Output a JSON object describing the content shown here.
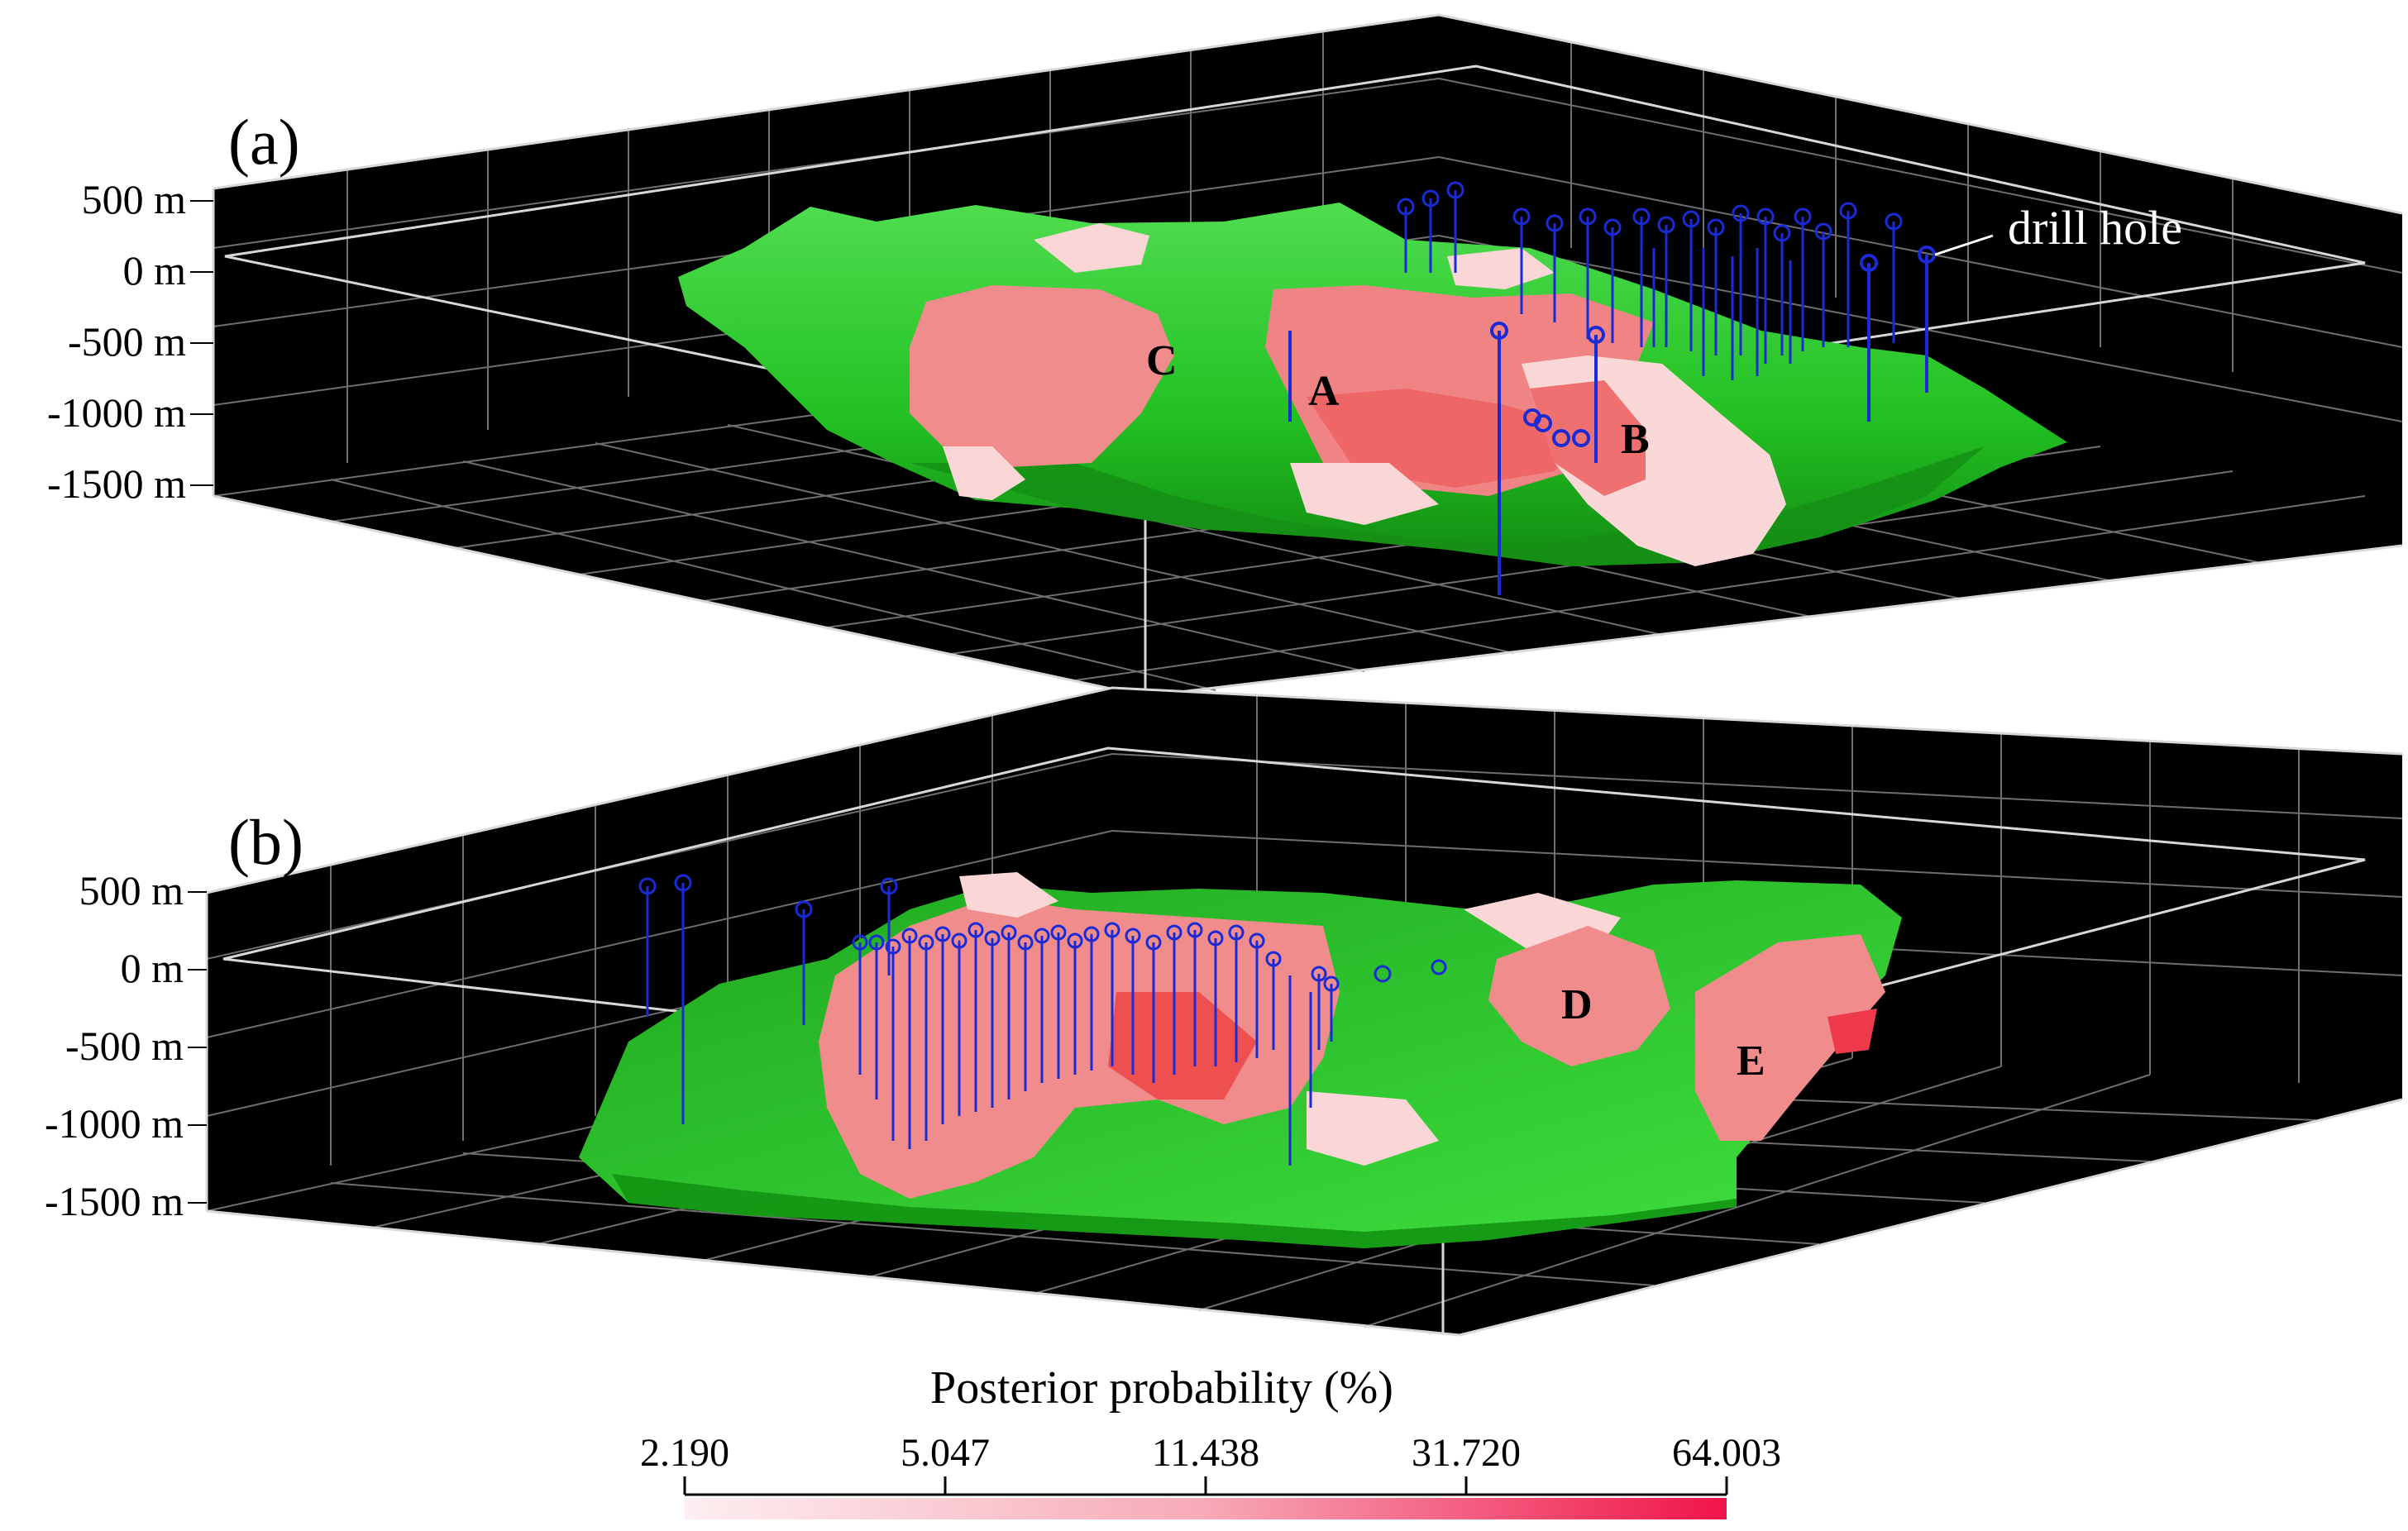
{
  "panels": [
    {
      "label": "(a)",
      "depth_labels": [
        "500 m",
        "0 m",
        "-500 m",
        "-1000 m",
        "-1500 m"
      ],
      "zone_labels": [
        "C",
        "A",
        "B"
      ],
      "annotation": "drill hole"
    },
    {
      "label": "(b)",
      "depth_labels": [
        "500 m",
        "0 m",
        "-500 m",
        "-1000 m",
        "-1500 m"
      ],
      "zone_labels": [
        "D",
        "E"
      ]
    }
  ],
  "colorbar": {
    "title": "Posterior probability (%)",
    "ticks": [
      "2.190",
      "5.047",
      "11.438",
      "31.720",
      "64.003"
    ],
    "color_low": "#fdeef1",
    "color_high": "#f0144a"
  },
  "colors": {
    "background": "#000000",
    "grid": "#7a7a7a",
    "frame": "#d8d8d8",
    "host_body": "#2ec92e",
    "drill_hole": "#1a2bd6",
    "probability_mid": "#f08c8c",
    "probability_low": "#fadada"
  }
}
